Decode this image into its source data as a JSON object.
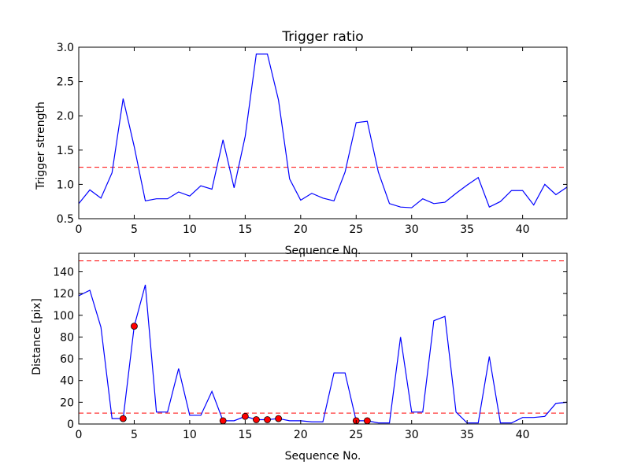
{
  "chart_data": [
    {
      "type": "line",
      "title": "Trigger ratio",
      "xlabel": "Sequence No.",
      "ylabel": "Trigger strength",
      "xlim": [
        0,
        44
      ],
      "ylim": [
        0.5,
        3.0
      ],
      "xticks": [
        0,
        5,
        10,
        15,
        20,
        25,
        30,
        35,
        40
      ],
      "yticks": [
        0.5,
        1.0,
        1.5,
        2.0,
        2.5,
        3.0
      ],
      "ytick_labels": [
        "0.5",
        "1.0",
        "1.5",
        "2.0",
        "2.5",
        "3.0"
      ],
      "grid": false,
      "series": [
        {
          "color": "#0000ff",
          "x": [
            0,
            1,
            2,
            3,
            4,
            5,
            6,
            7,
            8,
            9,
            10,
            11,
            12,
            13,
            14,
            15,
            16,
            17,
            18,
            19,
            20,
            21,
            22,
            23,
            24,
            25,
            26,
            27,
            28,
            29,
            30,
            31,
            32,
            33,
            34,
            35,
            36,
            37,
            38,
            39,
            40,
            41,
            42,
            43,
            44
          ],
          "values": [
            0.72,
            0.92,
            0.8,
            1.17,
            2.25,
            1.55,
            0.76,
            0.79,
            0.79,
            0.89,
            0.83,
            0.98,
            0.93,
            1.65,
            0.95,
            1.7,
            2.9,
            2.9,
            2.23,
            1.08,
            0.77,
            0.87,
            0.8,
            0.76,
            1.18,
            1.9,
            1.92,
            1.18,
            0.72,
            0.67,
            0.66,
            0.79,
            0.72,
            0.74,
            0.87,
            0.99,
            1.1,
            0.67,
            0.75,
            0.91,
            0.91,
            0.7,
            1.0,
            0.85,
            0.96
          ]
        }
      ],
      "reference_lines": [
        {
          "y": 1.25,
          "color": "#ff0000",
          "style": "dashed"
        }
      ]
    },
    {
      "type": "line",
      "title": "",
      "xlabel": "Sequence No.",
      "ylabel": "Distance [pix]",
      "xlim": [
        0,
        44
      ],
      "ylim": [
        0,
        157
      ],
      "xticks": [
        0,
        5,
        10,
        15,
        20,
        25,
        30,
        35,
        40
      ],
      "yticks": [
        0,
        20,
        40,
        60,
        80,
        100,
        120,
        140
      ],
      "ytick_labels": [
        "0",
        "20",
        "40",
        "60",
        "80",
        "100",
        "120",
        "140"
      ],
      "grid": false,
      "series": [
        {
          "color": "#0000ff",
          "x": [
            0,
            1,
            2,
            3,
            4,
            5,
            6,
            7,
            8,
            9,
            10,
            11,
            12,
            13,
            14,
            15,
            16,
            17,
            18,
            19,
            20,
            21,
            22,
            23,
            24,
            25,
            26,
            27,
            28,
            29,
            30,
            31,
            32,
            33,
            34,
            35,
            36,
            37,
            38,
            39,
            40,
            41,
            42,
            43,
            44
          ],
          "values": [
            118,
            123,
            89,
            5,
            5,
            90,
            128,
            11,
            11,
            51,
            8,
            8,
            30,
            3,
            3,
            7,
            4,
            4,
            5,
            3,
            3,
            2,
            2,
            47,
            47,
            3,
            3,
            1,
            1,
            80,
            11,
            11,
            95,
            99,
            11,
            1,
            1,
            62,
            1,
            1,
            6,
            6,
            7,
            19,
            20
          ]
        }
      ],
      "markers": {
        "color": "#ff0000",
        "x": [
          4,
          5,
          13,
          15,
          16,
          17,
          18,
          25,
          26
        ],
        "values": [
          5,
          90,
          3,
          7,
          4,
          4,
          5,
          3,
          3
        ]
      },
      "reference_lines": [
        {
          "y": 150,
          "color": "#ff0000",
          "style": "dashed"
        },
        {
          "y": 10,
          "color": "#ff0000",
          "style": "dashed"
        }
      ]
    }
  ]
}
